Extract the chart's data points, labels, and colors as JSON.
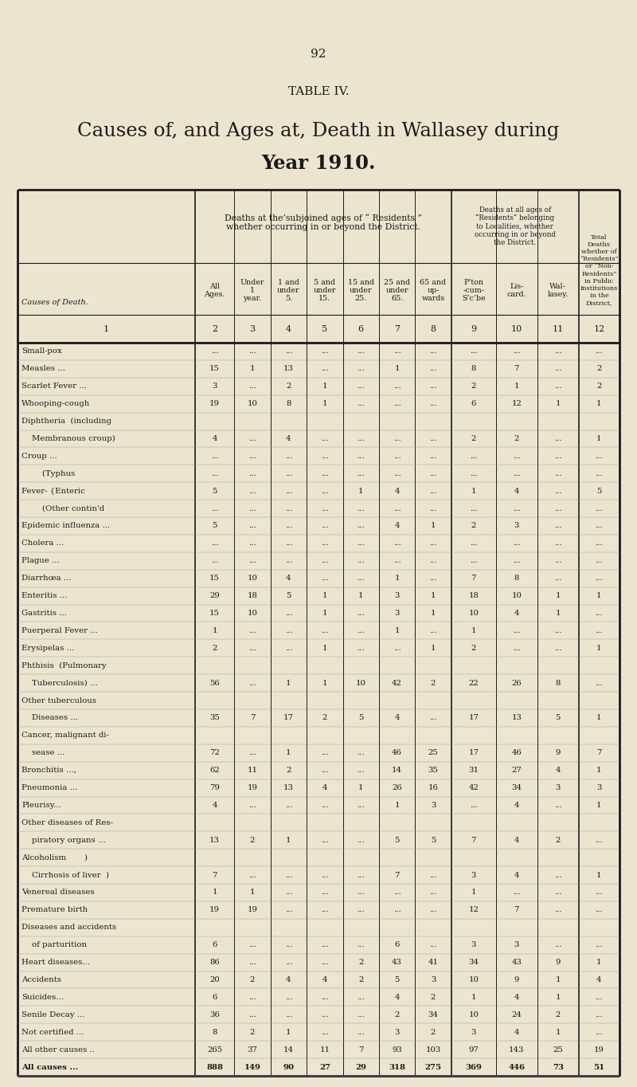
{
  "page_number": "92",
  "table_label": "TABLE IV.",
  "title_line1": "Causes of, and Ages at, Death in Wallasey during",
  "title_line2": "Year 1910.",
  "bg_color": "#ede4d0",
  "rows": [
    {
      "label": "Small-pox",
      "dots": "   ...              ..",
      "data": [
        "...",
        "...",
        "...",
        "...",
        "...",
        "...",
        "...",
        "...",
        "...",
        "...",
        "..."
      ]
    },
    {
      "label": "Measles ...",
      "dots": "   ...           ...",
      "data": [
        "15",
        "1",
        "13",
        "...",
        "...",
        "1",
        "...",
        "8",
        "7",
        "...",
        "2"
      ]
    },
    {
      "label": "Scarlet Fever ...",
      "dots": "   ...",
      "data": [
        "3",
        "...",
        "2",
        "1",
        "...",
        "...",
        "...",
        "2",
        "1",
        "...",
        "2"
      ]
    },
    {
      "label": "Whooping-cough",
      "dots": "   ...",
      "data": [
        "19",
        "10",
        "8",
        "1",
        "...",
        "...",
        "...",
        "6",
        "12",
        "1",
        "1"
      ]
    },
    {
      "label": "Diphtheria  (including",
      "dots": "",
      "data": [
        "",
        "",
        "",
        "",
        "",
        "",
        "",
        "",
        "",
        "",
        ""
      ]
    },
    {
      "label": "    Membranous croup)",
      "dots": "",
      "data": [
        "4",
        "...",
        "4",
        "...",
        "...",
        "...",
        "...",
        "2",
        "2",
        "...",
        "1"
      ]
    },
    {
      "label": "Croup ...",
      "dots": "   ...           ...",
      "data": [
        "...",
        "...",
        "...",
        "...",
        "...",
        "...",
        "...",
        "...",
        "...",
        "...",
        "..."
      ]
    },
    {
      "label": "        (Typhus",
      "dots": "   ...",
      "data": [
        "...",
        "...",
        "...",
        "...",
        "...",
        "...",
        "...",
        "...",
        "...",
        "...",
        "..."
      ]
    },
    {
      "label": "Fever- {Enteric",
      "dots": "   ...",
      "data": [
        "5",
        "...",
        "...",
        "...",
        "1",
        "4",
        "...",
        "1",
        "4",
        "...",
        "5"
      ]
    },
    {
      "label": "        (Other contin'd",
      "dots": "",
      "data": [
        "...",
        "...",
        "...",
        "...",
        "...",
        "...",
        "...",
        "...",
        "...",
        "...",
        "..."
      ]
    },
    {
      "label": "Epidemic influenza ...",
      "dots": "",
      "data": [
        "5",
        "...",
        "...",
        "...",
        "...",
        "4",
        "1",
        "2",
        "3",
        "...",
        "..."
      ]
    },
    {
      "label": "Cholera ...",
      "dots": "   ...           ...",
      "data": [
        "...",
        "...",
        "...",
        "...",
        "...",
        "...",
        "...",
        "...",
        "...",
        "...",
        "..."
      ]
    },
    {
      "label": "Plague ...",
      "dots": "   ...           ...",
      "data": [
        "...",
        "...",
        "...",
        "...",
        "...",
        "...",
        "...",
        "...",
        "...",
        "...",
        "..."
      ]
    },
    {
      "label": "Diarrhœa ...",
      "dots": "   ...",
      "data": [
        "15",
        "10",
        "4",
        "...",
        "...",
        "1",
        "...",
        "7",
        "8",
        "...",
        "..."
      ]
    },
    {
      "label": "Enteritis ...",
      "dots": "   ...",
      "data": [
        "29",
        "18",
        "5",
        "1",
        "1",
        "3",
        "1",
        "18",
        "10",
        "1",
        "1"
      ]
    },
    {
      "label": "Gastritis ...",
      "dots": "   ...",
      "data": [
        "15",
        "10",
        "...",
        "1",
        "...",
        "3",
        "1",
        "10",
        "4",
        "1",
        "..."
      ]
    },
    {
      "label": "Puerperal Fever ...",
      "dots": "",
      "data": [
        "1",
        "...",
        "...",
        "...",
        "...",
        "1",
        "...",
        "1",
        "...",
        "...",
        "..."
      ]
    },
    {
      "label": "Erysipelas ...",
      "dots": "   ...",
      "data": [
        "2",
        "...",
        "...",
        "1",
        "...",
        "...",
        "1",
        "2",
        "...",
        "...",
        "1"
      ]
    },
    {
      "label": "Phthisis  (Pulmonary",
      "dots": "",
      "data": [
        "",
        "",
        "",
        "",
        "",
        "",
        "",
        "",
        "",
        "",
        ""
      ]
    },
    {
      "label": "    Tuberculosis) ...",
      "dots": "",
      "data": [
        "56",
        "...",
        "1",
        "1",
        "10",
        "42",
        "2",
        "22",
        "26",
        "8",
        "..."
      ]
    },
    {
      "label": "Other tuberculous",
      "dots": "",
      "data": [
        "",
        "",
        "",
        "",
        "",
        "",
        "",
        "",
        "",
        "",
        ""
      ]
    },
    {
      "label": "    Diseases ...",
      "dots": "   ...",
      "data": [
        "35",
        "7",
        "17",
        "2",
        "5",
        "4",
        "...",
        "17",
        "13",
        "5",
        "1"
      ]
    },
    {
      "label": "Cancer, malignant di-",
      "dots": "",
      "data": [
        "",
        "",
        "",
        "",
        "",
        "",
        "",
        "",
        "",
        "",
        ""
      ]
    },
    {
      "label": "    sease ...",
      "dots": "   ...           ...",
      "data": [
        "72",
        "...",
        "1",
        "...",
        "...",
        "46",
        "25",
        "17",
        "46",
        "9",
        "7"
      ]
    },
    {
      "label": "Bronchitis ...,",
      "dots": "   ...",
      "data": [
        "62",
        "11",
        "2",
        "...",
        "...",
        "14",
        "35",
        "31",
        "27",
        "4",
        "1"
      ]
    },
    {
      "label": "Pneumonia ...",
      "dots": "   ...",
      "data": [
        "79",
        "19",
        "13",
        "4",
        "1",
        "26",
        "16",
        "42",
        "34",
        "3",
        "3"
      ]
    },
    {
      "label": "Pleurisy...",
      "dots": "   ...           ...",
      "data": [
        "4",
        "...",
        "...",
        "...",
        "...",
        "1",
        "3",
        "...",
        "4",
        "...",
        "1"
      ]
    },
    {
      "label": "Other diseases of Res-",
      "dots": "",
      "data": [
        "",
        "",
        "",
        "",
        "",
        "",
        "",
        "",
        "",
        "",
        ""
      ]
    },
    {
      "label": "    piratory organs ...",
      "dots": "",
      "data": [
        "13",
        "2",
        "1",
        "...",
        "...",
        "5",
        "5",
        "7",
        "4",
        "2",
        "..."
      ]
    },
    {
      "label": "Alcoholism       )",
      "dots": "",
      "data": [
        "",
        "",
        "",
        "",
        "",
        "",
        "",
        "",
        "",
        "",
        ""
      ]
    },
    {
      "label": "    Cirrhosis of liver  )",
      "dots": "",
      "data": [
        "7",
        "...",
        "...",
        "...",
        "...",
        "7",
        "...",
        "3",
        "4",
        "...",
        "1"
      ]
    },
    {
      "label": "Venereal diseases",
      "dots": "",
      "data": [
        "1",
        "1",
        "...",
        "...",
        "...",
        "...",
        "...",
        "1",
        "...",
        "...",
        "..."
      ]
    },
    {
      "label": "Premature birth",
      "dots": "",
      "data": [
        "19",
        "19",
        "...",
        "...",
        "...",
        "...",
        "...",
        "12",
        "7",
        "...",
        "..."
      ]
    },
    {
      "label": "Diseases and accidents",
      "dots": "",
      "data": [
        "",
        "",
        "",
        "",
        "",
        "",
        "",
        "",
        "",
        "",
        ""
      ]
    },
    {
      "label": "    of parturition",
      "dots": "",
      "data": [
        "6",
        "...",
        "...",
        "...",
        "...",
        "6",
        "...",
        "3",
        "3",
        "...",
        "..."
      ]
    },
    {
      "label": "Heart diseases...",
      "dots": "   ...",
      "data": [
        "86",
        "...",
        "...",
        "...",
        "2",
        "43",
        "41",
        "34",
        "43",
        "9",
        "1"
      ]
    },
    {
      "label": "Accidents",
      "dots": "",
      "data": [
        "20",
        "2",
        "4",
        "4",
        "2",
        "5",
        "3",
        "10",
        "9",
        "1",
        "4"
      ]
    },
    {
      "label": "Suicides...",
      "dots": "   ...",
      "data": [
        "6",
        "...",
        "...",
        "...",
        "...",
        "4",
        "2",
        "1",
        "4",
        "1",
        "..."
      ]
    },
    {
      "label": "Senile Decay ...",
      "dots": "   ...",
      "data": [
        "36",
        "...",
        "...",
        "...",
        "...",
        "2",
        "34",
        "10",
        "24",
        "2",
        "..."
      ]
    },
    {
      "label": "Not certified ...",
      "dots": "   ...",
      "data": [
        "8",
        "2",
        "1",
        "...",
        "...",
        "3",
        "2",
        "3",
        "4",
        "1",
        "..."
      ]
    },
    {
      "label": "All other causes ..",
      "dots": "",
      "data": [
        "265",
        "37",
        "14",
        "11",
        "7",
        "93",
        "103",
        "97",
        "143",
        "25",
        "19"
      ]
    },
    {
      "label": "All causes ...",
      "dots": "   ...",
      "data": [
        "888",
        "149",
        "90",
        "27",
        "29",
        "318",
        "275",
        "369",
        "446",
        "73",
        "51"
      ],
      "bold": true
    }
  ]
}
